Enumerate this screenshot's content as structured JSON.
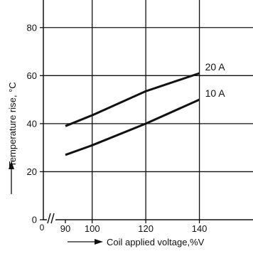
{
  "chart_data": {
    "type": "line",
    "xlabel": "Coil applied voltage,%V",
    "ylabel": "Temperature rise, °C",
    "x_ticks": [
      "90",
      "100",
      "120",
      "140"
    ],
    "x_origin_label": "0",
    "y_ticks": [
      "0",
      "20",
      "40",
      "60",
      "80"
    ],
    "xlim": [
      90,
      160
    ],
    "ylim": [
      0,
      90
    ],
    "axis_break": true,
    "grid": true,
    "series": [
      {
        "name": "20 A",
        "x": [
          90,
          100,
          120,
          140
        ],
        "y": [
          39,
          43.5,
          53.5,
          61
        ]
      },
      {
        "name": "10 A",
        "x": [
          90,
          100,
          120,
          140
        ],
        "y": [
          27,
          31,
          40,
          50
        ]
      }
    ]
  },
  "colors": {
    "line": "#111111",
    "grid": "#111111",
    "background": "#ffffff"
  }
}
